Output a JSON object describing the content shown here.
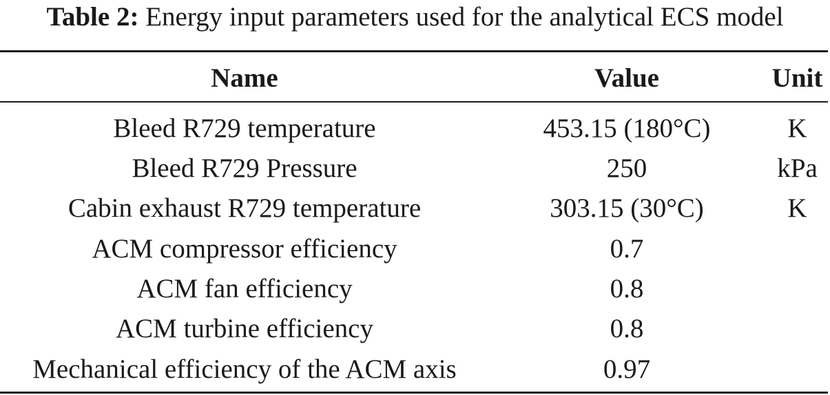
{
  "caption": {
    "label": "Table 2:",
    "text": "Energy input parameters used for the analytical ECS model"
  },
  "table": {
    "headers": {
      "name": "Name",
      "value": "Value",
      "unit": "Unit"
    },
    "rows": [
      {
        "name": "Bleed R729 temperature",
        "value": "453.15 (180°C)",
        "unit": "K"
      },
      {
        "name": "Bleed R729 Pressure",
        "value": "250",
        "unit": "kPa"
      },
      {
        "name": "Cabin exhaust R729 temperature",
        "value": "303.15 (30°C)",
        "unit": "K"
      },
      {
        "name": "ACM compressor efficiency",
        "value": "0.7",
        "unit": ""
      },
      {
        "name": "ACM fan efficiency",
        "value": "0.8",
        "unit": ""
      },
      {
        "name": "ACM turbine efficiency",
        "value": "0.8",
        "unit": ""
      },
      {
        "name": "Mechanical efficiency of the ACM axis",
        "value": "0.97",
        "unit": ""
      }
    ]
  }
}
